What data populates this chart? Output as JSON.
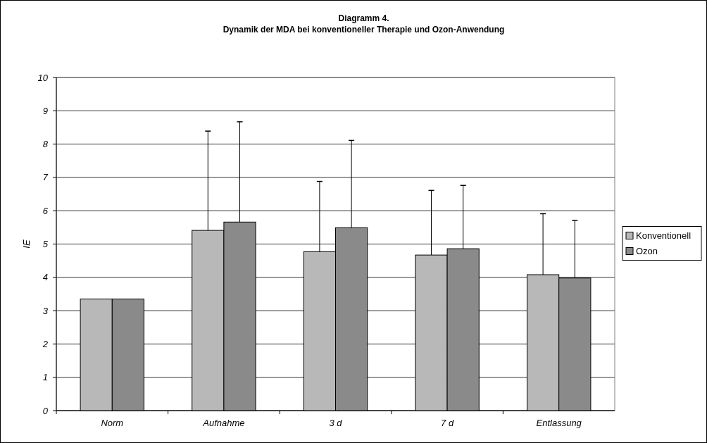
{
  "chart_data": {
    "type": "bar",
    "title": "Diagramm 4.\nDynamik der MDA bei konventioneller Therapie und Ozon-Anwendung",
    "ylabel": "IE",
    "categories": [
      "Norm",
      "Aufnahme",
      "3 d",
      "7 d",
      "Entlassung"
    ],
    "series": [
      {
        "name": "Konventionell",
        "color": "#b8b8b8",
        "values": [
          3.35,
          5.41,
          4.77,
          4.67,
          4.08
        ],
        "errors": [
          null,
          [
            5.41,
            8.39
          ],
          [
            4.77,
            6.88
          ],
          [
            4.67,
            6.61
          ],
          [
            4.08,
            5.91
          ]
        ]
      },
      {
        "name": "Ozon",
        "color": "#8a8a8a",
        "values": [
          3.35,
          5.66,
          5.49,
          4.86,
          3.98
        ],
        "errors": [
          null,
          [
            5.66,
            8.67
          ],
          [
            5.49,
            8.11
          ],
          [
            4.86,
            6.76
          ],
          [
            3.98,
            5.71
          ]
        ]
      }
    ],
    "ylim": [
      0,
      10
    ],
    "yticks": [
      0,
      1,
      2,
      3,
      4,
      5,
      6,
      7,
      8,
      9,
      10
    ],
    "grid": "y",
    "legend": "right"
  }
}
